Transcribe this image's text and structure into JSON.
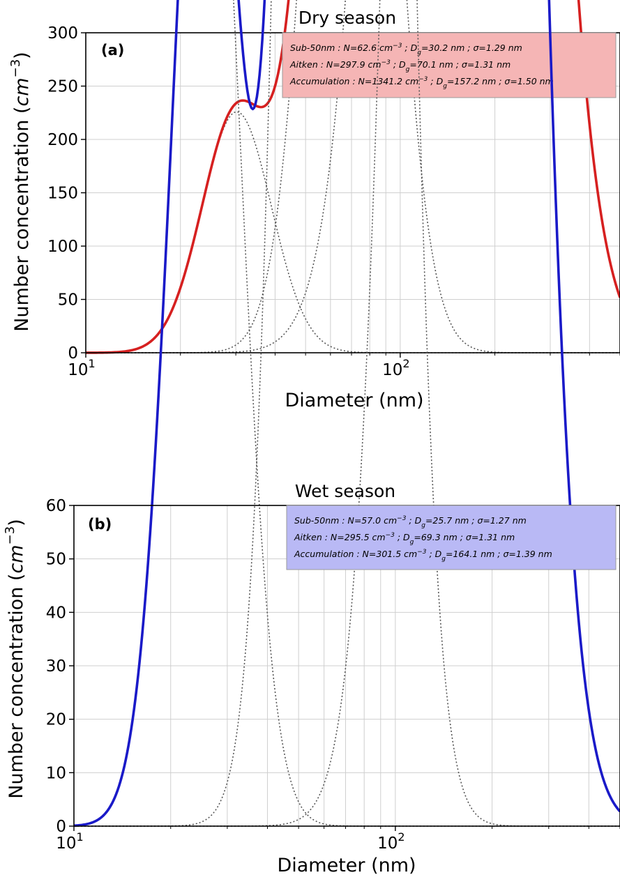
{
  "chart_data": [
    {
      "type": "line",
      "title": "Dry season",
      "panel_label": "(a)",
      "xlabel": "Diameter (nm)",
      "ylabel": "Number concentration",
      "ylabel_unit": "cm",
      "ylabel_unit_exp": "−3",
      "xscale": "log",
      "xlim": [
        10,
        500
      ],
      "ylim": [
        0,
        300
      ],
      "yticks": [
        0,
        50,
        100,
        150,
        200,
        250,
        300
      ],
      "xticks": [
        {
          "value": 10,
          "base": "10",
          "exp": "1"
        },
        {
          "value": 100,
          "base": "10",
          "exp": "2"
        }
      ],
      "grid": true,
      "legend_position": "top-right",
      "legend_color": "#f5b5b5",
      "series_color": "#d62020",
      "modes_style": "dotted",
      "modes": [
        {
          "label": "Sub-50nm",
          "N": 62.6,
          "Dg": 30.2,
          "sigma": 1.29,
          "text": [
            {
              "t": "Sub-50nm : N=62.6 cm"
            },
            {
              "t": "−3",
              "s": "sup"
            },
            {
              "t": " ; D"
            },
            {
              "t": "g",
              "s": "sub"
            },
            {
              "t": "=30.2 nm ; σ=1.29 nm"
            }
          ]
        },
        {
          "label": "Aitken",
          "N": 297.9,
          "Dg": 70.1,
          "sigma": 1.31,
          "text": [
            {
              "t": "Aitken : N=297.9 cm"
            },
            {
              "t": "−3",
              "s": "sup"
            },
            {
              "t": " ; D"
            },
            {
              "t": "g",
              "s": "sub"
            },
            {
              "t": "=70.1 nm ; σ=1.31 nm"
            }
          ]
        },
        {
          "label": "Accumulation",
          "N": 1341.2,
          "Dg": 157.2,
          "sigma": 1.5,
          "text": [
            {
              "t": "Accumulation : N=1341.2 cm"
            },
            {
              "t": "−3",
              "s": "sup"
            },
            {
              "t": " ; D"
            },
            {
              "t": "g",
              "s": "sub"
            },
            {
              "t": "=157.2 nm ; σ=1.50 nm"
            }
          ]
        }
      ]
    },
    {
      "type": "line",
      "title": "Wet season",
      "panel_label": "(b)",
      "xlabel": "Diameter (nm)",
      "ylabel": "Number concentration",
      "ylabel_unit": "cm",
      "ylabel_unit_exp": "−3",
      "xscale": "log",
      "xlim": [
        10,
        500
      ],
      "ylim": [
        0,
        60
      ],
      "yticks": [
        0,
        10,
        20,
        30,
        40,
        50,
        60
      ],
      "xticks": [
        {
          "value": 10,
          "base": "10",
          "exp": "1"
        },
        {
          "value": 100,
          "base": "10",
          "exp": "2"
        }
      ],
      "grid": true,
      "legend_position": "top-right",
      "legend_color": "#b9b9f5",
      "series_color": "#1a1ac8",
      "modes_style": "dotted",
      "modes": [
        {
          "label": "Sub-50nm",
          "N": 57.0,
          "Dg": 25.7,
          "sigma": 1.27,
          "text": [
            {
              "t": "Sub-50nm : N=57.0 cm"
            },
            {
              "t": "−3",
              "s": "sup"
            },
            {
              "t": " ; D"
            },
            {
              "t": "g",
              "s": "sub"
            },
            {
              "t": "=25.7 nm ; σ=1.27 nm"
            }
          ]
        },
        {
          "label": "Aitken",
          "N": 295.5,
          "Dg": 69.3,
          "sigma": 1.31,
          "text": [
            {
              "t": "Aitken : N=295.5 cm"
            },
            {
              "t": "−3",
              "s": "sup"
            },
            {
              "t": " ; D"
            },
            {
              "t": "g",
              "s": "sub"
            },
            {
              "t": "=69.3 nm ; σ=1.31 nm"
            }
          ]
        },
        {
          "label": "Accumulation",
          "N": 301.5,
          "Dg": 164.1,
          "sigma": 1.39,
          "text": [
            {
              "t": "Accumulation : N=301.5 cm"
            },
            {
              "t": "−3",
              "s": "sup"
            },
            {
              "t": " ; D"
            },
            {
              "t": "g",
              "s": "sub"
            },
            {
              "t": "=164.1 nm ; σ=1.39 nm"
            }
          ]
        }
      ]
    }
  ]
}
